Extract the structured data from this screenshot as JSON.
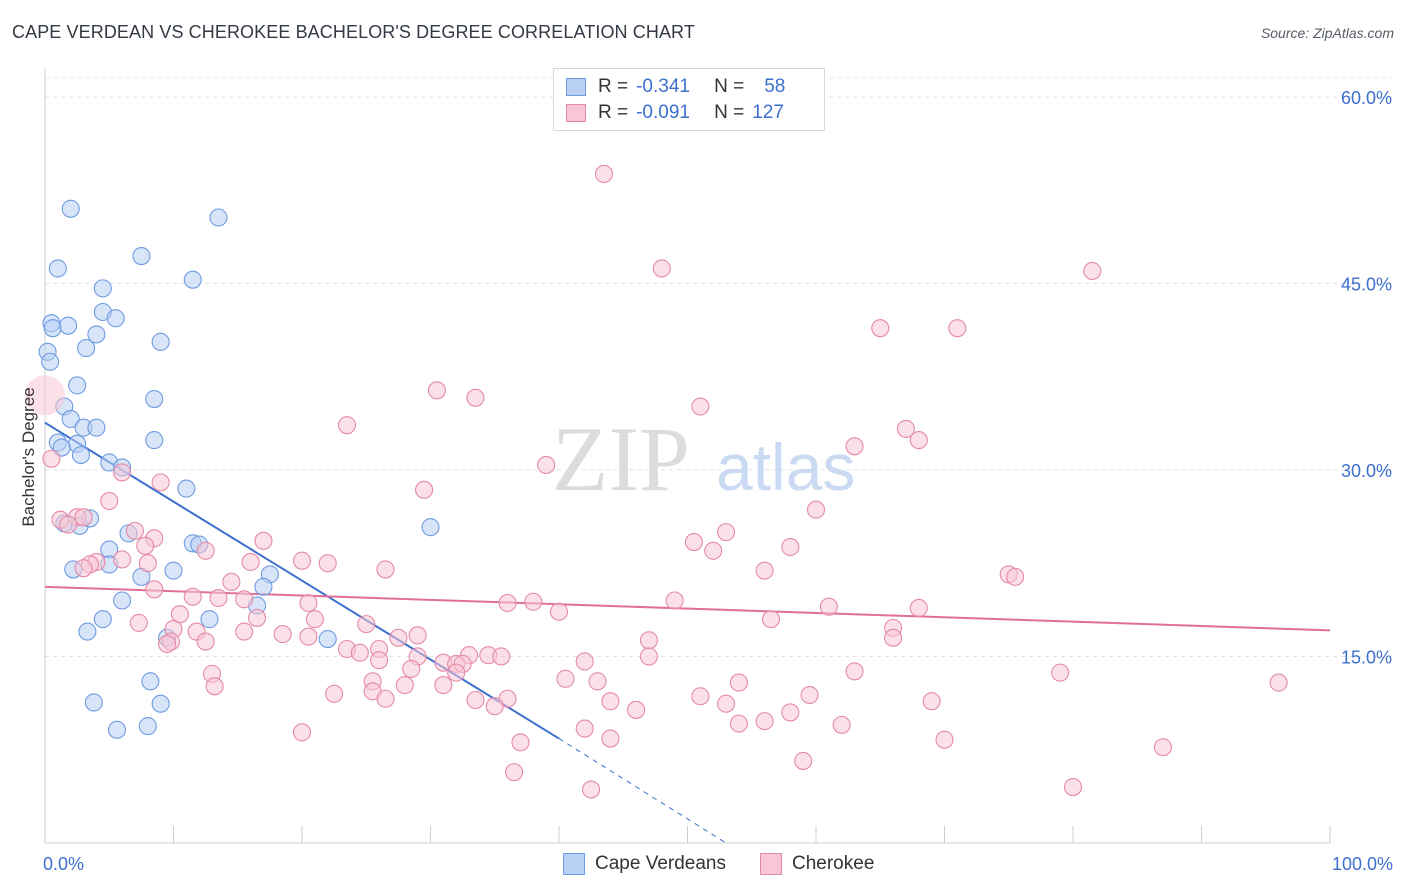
{
  "title": "CAPE VERDEAN VS CHEROKEE BACHELOR'S DEGREE CORRELATION CHART",
  "source": "Source: ZipAtlas.com",
  "watermark": {
    "zip": "ZIP",
    "atlas": "atlas"
  },
  "legend": {
    "r_label": "R =",
    "n_label": "N =",
    "rows": [
      {
        "name": "Cape Verdeans",
        "r": "-0.341",
        "n": "58",
        "fill": "#b8d0f4",
        "stroke": "#6f9be0"
      },
      {
        "name": "Cherokee",
        "r": "-0.091",
        "n": "127",
        "fill": "#f8c6d6",
        "stroke": "#e48aa8"
      }
    ]
  },
  "chart_data": {
    "type": "scatter",
    "xlabel": "",
    "ylabel": "Bachelor's Degree",
    "xlim": [
      0,
      100
    ],
    "ylim": [
      0,
      62
    ],
    "x_ticks_labels": [
      "0.0%",
      "100.0%"
    ],
    "y_ticks": [
      15,
      30,
      45,
      60
    ],
    "y_tick_labels": [
      "15.0%",
      "30.0%",
      "45.0%",
      "60.0%"
    ],
    "series": [
      {
        "name": "Cape Verdeans",
        "color": "#6f9be0",
        "fill": "#b8d0f4",
        "trend": {
          "x": [
            0,
            40
          ],
          "y": [
            33.8,
            8.4
          ],
          "dashed_to_x": 53,
          "dashed_to_y": 0
        },
        "points": [
          [
            2,
            51
          ],
          [
            13.5,
            50.3
          ],
          [
            7.5,
            47.2
          ],
          [
            1,
            46.2
          ],
          [
            11.5,
            45.3
          ],
          [
            4.5,
            44.6
          ],
          [
            4.5,
            42.7
          ],
          [
            5.5,
            42.2
          ],
          [
            0.5,
            41.8
          ],
          [
            0.6,
            41.4
          ],
          [
            1.8,
            41.6
          ],
          [
            4,
            40.9
          ],
          [
            9,
            40.3
          ],
          [
            3.2,
            39.8
          ],
          [
            0.2,
            39.5
          ],
          [
            0.4,
            38.7
          ],
          [
            2.5,
            36.8
          ],
          [
            8.5,
            35.7
          ],
          [
            1.5,
            35.1
          ],
          [
            2,
            34.1
          ],
          [
            3,
            33.4
          ],
          [
            4,
            33.4
          ],
          [
            8.5,
            32.4
          ],
          [
            1,
            32.2
          ],
          [
            2.5,
            32.1
          ],
          [
            1.3,
            31.8
          ],
          [
            2.8,
            31.2
          ],
          [
            5,
            30.6
          ],
          [
            6,
            30.2
          ],
          [
            11,
            28.5
          ],
          [
            30,
            25.4
          ],
          [
            1.5,
            25.7
          ],
          [
            2.7,
            25.5
          ],
          [
            3.5,
            26.1
          ],
          [
            6.5,
            24.9
          ],
          [
            11.5,
            24.1
          ],
          [
            12,
            24
          ],
          [
            5,
            23.6
          ],
          [
            5,
            22.4
          ],
          [
            2.2,
            22
          ],
          [
            10,
            21.9
          ],
          [
            7.5,
            21.4
          ],
          [
            17.5,
            21.6
          ],
          [
            17,
            20.6
          ],
          [
            6,
            19.5
          ],
          [
            16.5,
            19.1
          ],
          [
            4.5,
            18
          ],
          [
            12.8,
            18
          ],
          [
            3.3,
            17
          ],
          [
            22,
            16.4
          ],
          [
            9.5,
            16.5
          ],
          [
            8.2,
            13
          ],
          [
            3.8,
            11.3
          ],
          [
            9,
            11.2
          ],
          [
            5.6,
            9.1
          ],
          [
            8,
            9.4
          ]
        ]
      },
      {
        "name": "Cherokee",
        "color": "#e48aa8",
        "fill": "#f8c6d6",
        "trend": {
          "x": [
            0,
            100
          ],
          "y": [
            20.6,
            17.1
          ]
        },
        "points": [
          [
            43.5,
            53.8
          ],
          [
            48,
            46.2
          ],
          [
            81.5,
            46
          ],
          [
            65,
            41.4
          ],
          [
            71,
            41.4
          ],
          [
            30.5,
            36.4
          ],
          [
            33.5,
            35.8
          ],
          [
            51,
            35.1
          ],
          [
            23.5,
            33.6
          ],
          [
            67,
            33.3
          ],
          [
            68,
            32.4
          ],
          [
            63,
            31.9
          ],
          [
            0.5,
            30.9
          ],
          [
            39,
            30.4
          ],
          [
            6,
            29.8
          ],
          [
            9,
            29
          ],
          [
            29.5,
            28.4
          ],
          [
            60,
            26.8
          ],
          [
            5,
            27.5
          ],
          [
            1.2,
            26
          ],
          [
            2.5,
            26.2
          ],
          [
            3,
            26.2
          ],
          [
            1.8,
            25.6
          ],
          [
            7,
            25.1
          ],
          [
            53,
            25
          ],
          [
            8.5,
            24.5
          ],
          [
            17,
            24.3
          ],
          [
            50.5,
            24.2
          ],
          [
            7.8,
            23.9
          ],
          [
            58,
            23.8
          ],
          [
            52,
            23.5
          ],
          [
            12.5,
            23.5
          ],
          [
            4,
            22.6
          ],
          [
            3.5,
            22.4
          ],
          [
            6,
            22.8
          ],
          [
            20,
            22.7
          ],
          [
            8,
            22.5
          ],
          [
            22,
            22.5
          ],
          [
            16,
            22.6
          ],
          [
            26.5,
            22
          ],
          [
            3,
            22.1
          ],
          [
            56,
            21.9
          ],
          [
            75,
            21.6
          ],
          [
            75.5,
            21.4
          ],
          [
            14.5,
            21
          ],
          [
            8.5,
            20.4
          ],
          [
            11.5,
            19.8
          ],
          [
            15.5,
            19.6
          ],
          [
            13.5,
            19.7
          ],
          [
            20.5,
            19.3
          ],
          [
            36,
            19.3
          ],
          [
            38,
            19.4
          ],
          [
            49,
            19.5
          ],
          [
            61,
            19
          ],
          [
            68,
            18.9
          ],
          [
            40,
            18.6
          ],
          [
            10.5,
            18.4
          ],
          [
            16.5,
            18.1
          ],
          [
            21,
            18
          ],
          [
            56.5,
            18
          ],
          [
            7.3,
            17.7
          ],
          [
            25,
            17.6
          ],
          [
            66,
            17.3
          ],
          [
            10,
            17.2
          ],
          [
            11.8,
            17
          ],
          [
            15.5,
            17
          ],
          [
            18.5,
            16.8
          ],
          [
            20.5,
            16.6
          ],
          [
            27.5,
            16.5
          ],
          [
            29,
            16.7
          ],
          [
            47,
            16.3
          ],
          [
            9.8,
            16.2
          ],
          [
            12.5,
            16.2
          ],
          [
            9.5,
            16
          ],
          [
            66,
            16.5
          ],
          [
            23.5,
            15.6
          ],
          [
            26,
            15.6
          ],
          [
            33,
            15.1
          ],
          [
            34.5,
            15.1
          ],
          [
            35.5,
            15
          ],
          [
            47,
            15
          ],
          [
            26,
            14.7
          ],
          [
            29,
            15
          ],
          [
            24.5,
            15.3
          ],
          [
            31,
            14.5
          ],
          [
            32,
            14.4
          ],
          [
            32.5,
            14.4
          ],
          [
            42,
            14.6
          ],
          [
            28.5,
            14
          ],
          [
            32,
            13.7
          ],
          [
            13,
            13.6
          ],
          [
            63,
            13.8
          ],
          [
            79,
            13.7
          ],
          [
            96,
            12.9
          ],
          [
            40.5,
            13.2
          ],
          [
            43,
            13
          ],
          [
            54,
            12.9
          ],
          [
            25.5,
            13
          ],
          [
            28,
            12.7
          ],
          [
            31,
            12.7
          ],
          [
            13.2,
            12.6
          ],
          [
            22.5,
            12
          ],
          [
            25.5,
            12.2
          ],
          [
            26.5,
            11.6
          ],
          [
            33.5,
            11.5
          ],
          [
            36,
            11.6
          ],
          [
            44,
            11.4
          ],
          [
            51,
            11.8
          ],
          [
            53,
            11.2
          ],
          [
            59.5,
            11.9
          ],
          [
            69,
            11.4
          ],
          [
            46,
            10.7
          ],
          [
            58,
            10.5
          ],
          [
            35,
            11
          ],
          [
            54,
            9.6
          ],
          [
            56,
            9.8
          ],
          [
            62,
            9.5
          ],
          [
            42,
            9.2
          ],
          [
            20,
            8.9
          ],
          [
            37,
            8.1
          ],
          [
            44,
            8.4
          ],
          [
            70,
            8.3
          ],
          [
            87,
            7.7
          ],
          [
            59,
            6.6
          ],
          [
            36.5,
            5.7
          ],
          [
            42.5,
            4.3
          ],
          [
            80,
            4.5
          ]
        ]
      }
    ]
  }
}
